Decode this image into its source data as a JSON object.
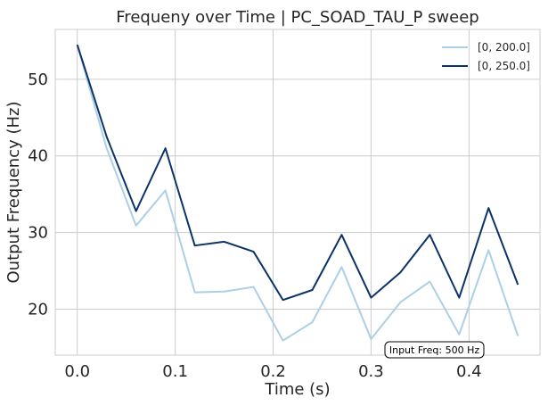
{
  "chart_data": {
    "type": "line",
    "title": "Frequeny over Time | PC_SOAD_TAU_P sweep",
    "xlabel": "Time (s)",
    "ylabel": "Output Frequency (Hz)",
    "xlim": [
      -0.0225,
      0.4725
    ],
    "ylim": [
      14.0,
      56.5
    ],
    "xticks": [
      0.0,
      0.1,
      0.2,
      0.3,
      0.4
    ],
    "xtick_labels": [
      "0.0",
      "0.1",
      "0.2",
      "0.3",
      "0.4"
    ],
    "yticks": [
      20,
      30,
      40,
      50
    ],
    "ytick_labels": [
      "20",
      "30",
      "40",
      "50"
    ],
    "grid": true,
    "legend_position": "top-right",
    "x": [
      0.0,
      0.03,
      0.06,
      0.09,
      0.12,
      0.15,
      0.18,
      0.21,
      0.24,
      0.27,
      0.3,
      0.33,
      0.36,
      0.39,
      0.42,
      0.45
    ],
    "series": [
      {
        "name": "[0, 200.0]",
        "color": "#abcfe5",
        "values": [
          54.5,
          41.0,
          30.9,
          35.5,
          22.2,
          22.3,
          22.9,
          15.9,
          18.3,
          25.5,
          16.1,
          20.9,
          23.6,
          16.7,
          27.7,
          16.5
        ]
      },
      {
        "name": "[0, 250.0]",
        "color": "#0b3269",
        "values": [
          54.5,
          42.5,
          32.8,
          41.0,
          28.3,
          28.8,
          27.5,
          21.2,
          22.5,
          29.7,
          21.5,
          24.8,
          29.7,
          21.5,
          33.2,
          23.2
        ]
      }
    ],
    "annotation": "Input Freq: 500 Hz"
  }
}
